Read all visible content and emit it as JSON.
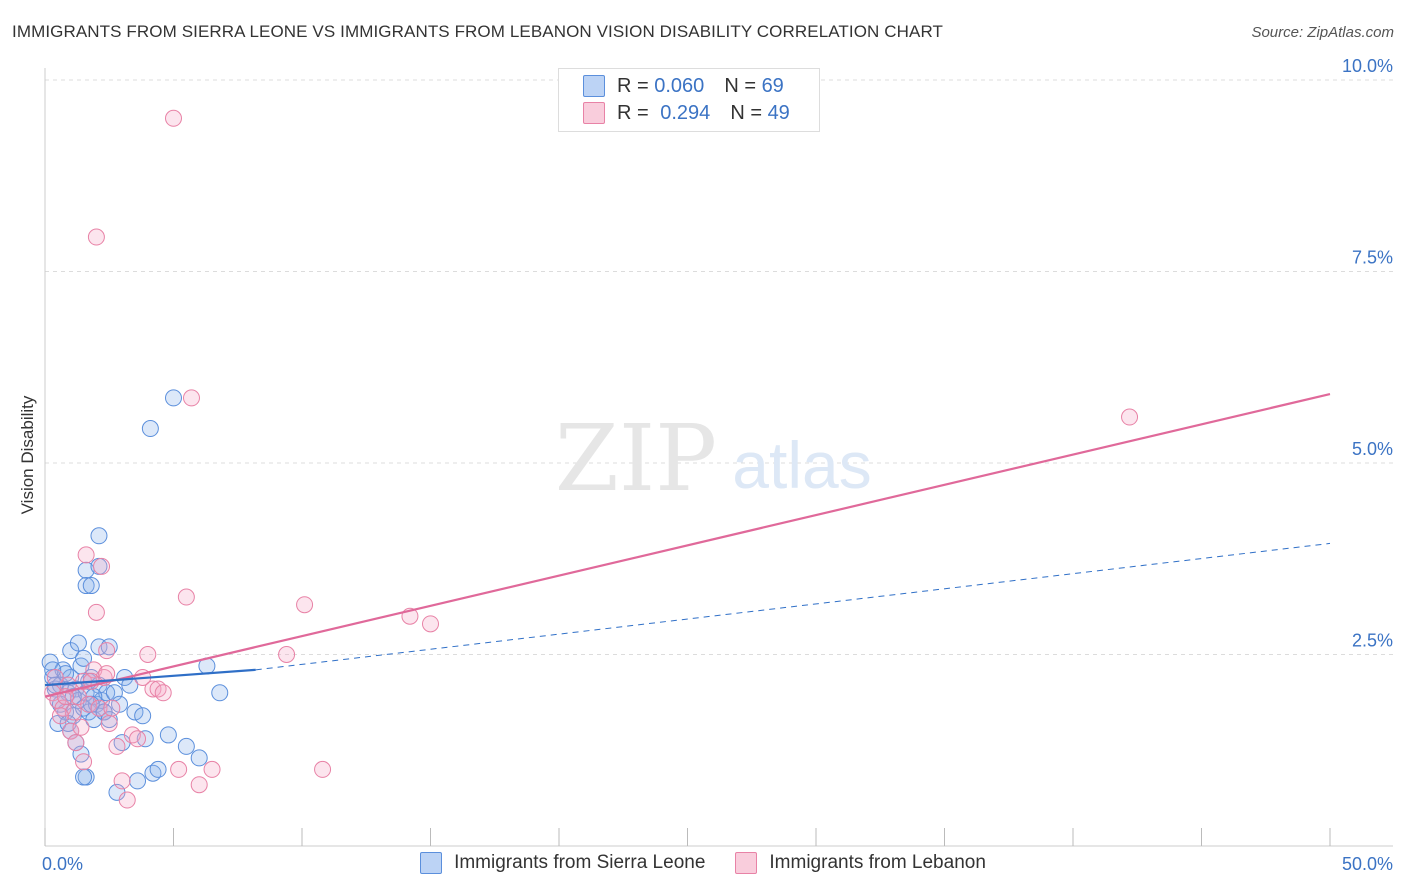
{
  "title": "IMMIGRANTS FROM SIERRA LEONE VS IMMIGRANTS FROM LEBANON VISION DISABILITY CORRELATION CHART",
  "source": "Source: ZipAtlas.com",
  "watermark": {
    "zip": "ZIP",
    "atlas": "atlas"
  },
  "legend": {
    "r_label": "R =",
    "n_label": "N =",
    "series": [
      {
        "name": "Immigrants from Sierra Leone",
        "r": "0.060",
        "n": "69"
      },
      {
        "name": "Immigrants from Lebanon",
        "r": "0.294",
        "n": "49"
      }
    ]
  },
  "chart_data": {
    "type": "scatter",
    "title": "IMMIGRANTS FROM SIERRA LEONE VS IMMIGRANTS FROM LEBANON VISION DISABILITY CORRELATION CHART",
    "xlabel": "",
    "ylabel": "Vision Disability",
    "xlim": [
      0,
      50
    ],
    "ylim": [
      0,
      10
    ],
    "x_tick_labels": [
      {
        "value": 0,
        "label": "0.0%"
      },
      {
        "value": 50,
        "label": "50.0%"
      }
    ],
    "y_tick_labels": [
      {
        "value": 2.5,
        "label": "2.5%"
      },
      {
        "value": 5.0,
        "label": "5.0%"
      },
      {
        "value": 7.5,
        "label": "7.5%"
      },
      {
        "value": 10.0,
        "label": "10.0%"
      }
    ],
    "colors": {
      "sierra_leone": "#5b8fdc",
      "lebanon": "#e882a6",
      "sl_line": "#2f6fc7",
      "lb_line": "#e0699a",
      "tick_label": "#3b73c4",
      "grid": "#dcdcdc"
    },
    "series": [
      {
        "name": "Immigrants from Sierra Leone",
        "r": 0.06,
        "n": 69,
        "trend_solid": [
          [
            0,
            2.1
          ],
          [
            8.2,
            2.3
          ]
        ],
        "trend_dashed": [
          [
            8.2,
            2.3
          ],
          [
            50,
            3.95
          ]
        ],
        "points": [
          [
            0.2,
            2.4
          ],
          [
            0.3,
            2.2
          ],
          [
            0.4,
            2.05
          ],
          [
            0.5,
            1.9
          ],
          [
            0.6,
            2.1
          ],
          [
            0.7,
            2.3
          ],
          [
            0.8,
            1.75
          ],
          [
            0.9,
            2.0
          ],
          [
            0.5,
            1.6
          ],
          [
            1.0,
            2.2
          ],
          [
            1.1,
            1.7
          ],
          [
            1.2,
            2.05
          ],
          [
            1.3,
            1.9
          ],
          [
            1.4,
            2.35
          ],
          [
            1.5,
            1.8
          ],
          [
            1.6,
            2.0
          ],
          [
            1.7,
            1.75
          ],
          [
            1.8,
            2.2
          ],
          [
            1.9,
            1.65
          ],
          [
            2.0,
            1.85
          ],
          [
            2.1,
            2.1
          ],
          [
            2.2,
            1.9
          ],
          [
            2.3,
            1.75
          ],
          [
            2.4,
            2.0
          ],
          [
            0.4,
            2.1
          ],
          [
            0.6,
            1.85
          ],
          [
            0.8,
            2.25
          ],
          [
            1.0,
            1.5
          ],
          [
            1.2,
            1.35
          ],
          [
            1.4,
            1.2
          ],
          [
            1.6,
            0.9
          ],
          [
            1.0,
            2.55
          ],
          [
            1.3,
            2.65
          ],
          [
            1.5,
            2.45
          ],
          [
            1.7,
            2.15
          ],
          [
            1.9,
            1.95
          ],
          [
            2.1,
            2.6
          ],
          [
            2.3,
            1.75
          ],
          [
            1.6,
            3.6
          ],
          [
            1.6,
            3.4
          ],
          [
            1.8,
            3.4
          ],
          [
            2.5,
            1.65
          ],
          [
            2.7,
            2.0
          ],
          [
            2.9,
            1.85
          ],
          [
            3.1,
            2.2
          ],
          [
            3.3,
            2.1
          ],
          [
            3.5,
            1.75
          ],
          [
            3.0,
            1.35
          ],
          [
            2.8,
            0.7
          ],
          [
            3.6,
            0.85
          ],
          [
            3.8,
            1.7
          ],
          [
            3.9,
            1.4
          ],
          [
            4.2,
            0.95
          ],
          [
            4.4,
            1.0
          ],
          [
            4.8,
            1.45
          ],
          [
            5.0,
            5.85
          ],
          [
            5.5,
            1.3
          ],
          [
            6.0,
            1.15
          ],
          [
            2.1,
            3.65
          ],
          [
            2.1,
            4.05
          ],
          [
            2.5,
            2.6
          ],
          [
            4.1,
            5.45
          ],
          [
            6.3,
            2.35
          ],
          [
            6.8,
            2.0
          ],
          [
            0.3,
            2.3
          ],
          [
            0.9,
            1.6
          ],
          [
            1.1,
            1.95
          ],
          [
            1.5,
            0.9
          ],
          [
            1.8,
            1.85
          ]
        ]
      },
      {
        "name": "Immigrants from Lebanon",
        "r": 0.294,
        "n": 49,
        "trend_solid": [
          [
            0,
            1.95
          ],
          [
            50,
            5.9
          ]
        ],
        "points": [
          [
            0.3,
            2.0
          ],
          [
            0.5,
            1.9
          ],
          [
            0.7,
            1.8
          ],
          [
            0.9,
            2.1
          ],
          [
            1.1,
            1.75
          ],
          [
            1.3,
            1.95
          ],
          [
            1.5,
            2.15
          ],
          [
            1.7,
            1.85
          ],
          [
            1.9,
            2.3
          ],
          [
            2.1,
            1.8
          ],
          [
            2.3,
            2.2
          ],
          [
            2.5,
            1.6
          ],
          [
            0.4,
            2.2
          ],
          [
            0.6,
            1.7
          ],
          [
            0.8,
            1.95
          ],
          [
            1.0,
            1.5
          ],
          [
            1.2,
            1.35
          ],
          [
            1.4,
            1.55
          ],
          [
            1.6,
            3.8
          ],
          [
            1.8,
            2.15
          ],
          [
            2.0,
            3.05
          ],
          [
            2.2,
            3.65
          ],
          [
            2.4,
            2.25
          ],
          [
            2.6,
            1.8
          ],
          [
            2.8,
            1.3
          ],
          [
            3.0,
            0.85
          ],
          [
            3.2,
            0.6
          ],
          [
            3.4,
            1.45
          ],
          [
            3.6,
            1.4
          ],
          [
            3.8,
            2.2
          ],
          [
            4.0,
            2.5
          ],
          [
            4.2,
            2.05
          ],
          [
            4.4,
            2.05
          ],
          [
            4.6,
            2.0
          ],
          [
            5.2,
            1.0
          ],
          [
            5.5,
            3.25
          ],
          [
            5.7,
            5.85
          ],
          [
            5.0,
            9.5
          ],
          [
            6.0,
            0.8
          ],
          [
            6.5,
            1.0
          ],
          [
            2.0,
            7.95
          ],
          [
            2.4,
            2.55
          ],
          [
            1.5,
            1.1
          ],
          [
            9.4,
            2.5
          ],
          [
            10.1,
            3.15
          ],
          [
            10.8,
            1.0
          ],
          [
            14.2,
            3.0
          ],
          [
            15.0,
            2.9
          ],
          [
            42.2,
            5.6
          ]
        ]
      }
    ]
  }
}
